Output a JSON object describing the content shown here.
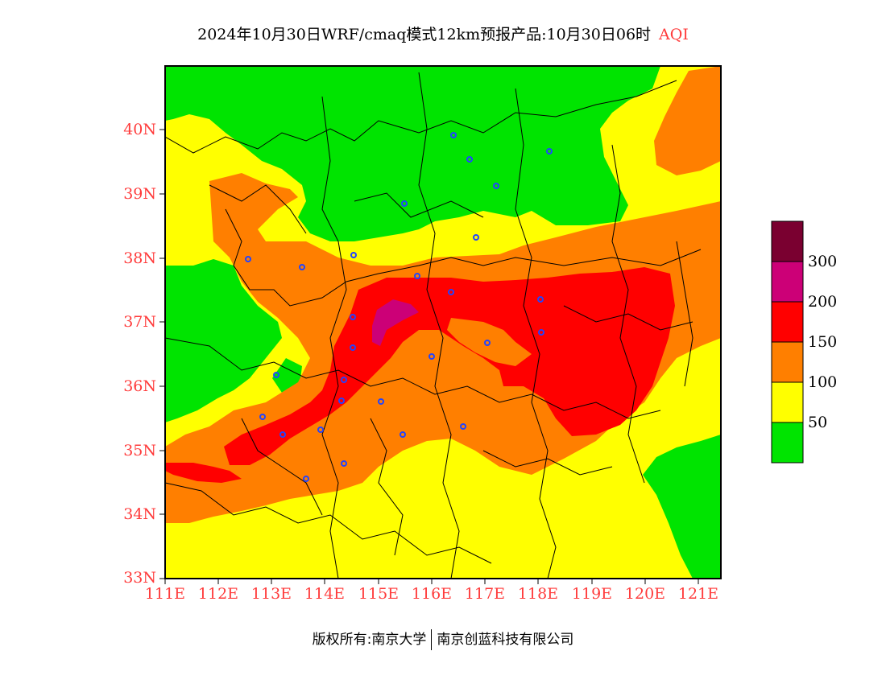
{
  "title": "2024年10月30日WRF/cmaq模式12km预报产品:10月30日06时",
  "title_tag": "AQI",
  "lat_labels": [
    "40N",
    "39N",
    "38N",
    "37N",
    "36N",
    "35N",
    "34N",
    "33N"
  ],
  "lon_labels": [
    "111E",
    "112E",
    "113E",
    "114E",
    "115E",
    "116E",
    "117E",
    "118E",
    "119E",
    "120E",
    "121E"
  ],
  "legend": {
    "labels": [
      "300",
      "200",
      "150",
      "100",
      "50"
    ],
    "colors": [
      "#7a0030",
      "#cc0077",
      "#ff0000",
      "#ff7f00",
      "#ffff00",
      "#00e400"
    ]
  },
  "footer": {
    "left": "版权所有:南京大学",
    "right": "南京创蓝科技有限公司"
  },
  "colors": {
    "good": "#00e400",
    "moderate": "#ffff00",
    "usg": "#ff7f00",
    "unhealthy": "#ff0000",
    "very_unhealthy": "#cc0077",
    "hazardous": "#7a0030",
    "station": "#2244ff",
    "axis_text": "#ff3b3b"
  }
}
